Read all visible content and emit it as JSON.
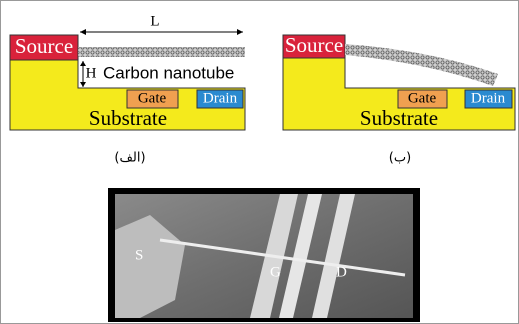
{
  "left_diagram": {
    "source": "Source",
    "gate": "Gate",
    "drain": "Drain",
    "substrate": "Substrate",
    "length_label": "L",
    "height_label": "H",
    "nanotube": "Carbon nanotube",
    "caption": "(الف)"
  },
  "right_diagram": {
    "source": "Source",
    "gate": "Gate",
    "drain": "Drain",
    "substrate": "Substrate",
    "caption": "(ب)"
  },
  "photo": {
    "labels": [
      "S",
      "G",
      "D"
    ]
  }
}
